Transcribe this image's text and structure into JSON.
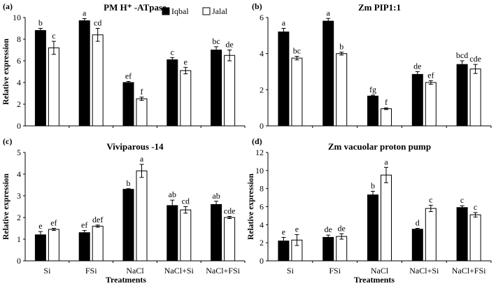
{
  "x_label": "Treatments",
  "chart_data": [
    {
      "type": "bar",
      "panel": "(a)",
      "title": "PM H⁺ -ATpase",
      "ylabel": "Relative expression",
      "ylim": [
        0,
        10
      ],
      "yticks": [
        0,
        2,
        4,
        6,
        8,
        10
      ],
      "categories": [
        "Si",
        "FSi",
        "NaCl",
        "NaCl+Si",
        "NaCl+FSi"
      ],
      "legend": true,
      "series": [
        {
          "name": "Iqbal",
          "color": "#000000",
          "values": [
            8.8,
            9.7,
            4.0,
            6.1,
            7.0
          ],
          "errors": [
            0.2,
            0.2,
            0.1,
            0.2,
            0.3
          ],
          "labels": [
            "b",
            "a",
            "ef",
            "c",
            "bc"
          ]
        },
        {
          "name": "Jalal",
          "color": "#ffffff",
          "values": [
            7.2,
            8.4,
            2.5,
            5.1,
            6.5
          ],
          "errors": [
            0.6,
            0.6,
            0.15,
            0.3,
            0.5
          ],
          "labels": [
            "c",
            "cd",
            "f",
            "e",
            "de"
          ]
        }
      ]
    },
    {
      "type": "bar",
      "panel": "(b)",
      "title": "Zm PIP1:1",
      "ylabel": "",
      "ylim": [
        0,
        6
      ],
      "yticks": [
        0,
        2,
        4,
        6
      ],
      "categories": [
        "Si",
        "FSi",
        "NaCl",
        "NaCl+Si",
        "NaCl+FSi"
      ],
      "legend": false,
      "series": [
        {
          "name": "Iqbal",
          "color": "#000000",
          "values": [
            5.2,
            5.8,
            1.65,
            2.85,
            3.4
          ],
          "errors": [
            0.2,
            0.15,
            0.05,
            0.15,
            0.2
          ],
          "labels": [
            "a",
            "a",
            "fg",
            "de",
            "bcd"
          ]
        },
        {
          "name": "Jalal",
          "color": "#ffffff",
          "values": [
            3.75,
            4.0,
            0.95,
            2.4,
            3.15
          ],
          "errors": [
            0.1,
            0.08,
            0.05,
            0.1,
            0.25
          ],
          "labels": [
            "bc",
            "b",
            "f",
            "ef",
            "cde"
          ]
        }
      ]
    },
    {
      "type": "bar",
      "panel": "(c)",
      "title": "Viviparous -14",
      "ylabel": "Relative expression",
      "ylim": [
        0,
        5
      ],
      "yticks": [
        0,
        1,
        2,
        3,
        4,
        5
      ],
      "categories": [
        "Si",
        "FSi",
        "NaCl",
        "NaCl+Si",
        "NaCl+FSi"
      ],
      "legend": false,
      "series": [
        {
          "name": "Iqbal",
          "color": "#000000",
          "values": [
            1.2,
            1.3,
            3.3,
            2.55,
            2.6
          ],
          "errors": [
            0.15,
            0.1,
            0.03,
            0.25,
            0.15
          ],
          "labels": [
            "e",
            "ef",
            "b",
            "ab",
            "ab"
          ]
        },
        {
          "name": "Jalal",
          "color": "#ffffff",
          "values": [
            1.45,
            1.6,
            4.15,
            2.35,
            2.0
          ],
          "errors": [
            0.05,
            0.05,
            0.3,
            0.15,
            0.05
          ],
          "labels": [
            "ef",
            "def",
            "a",
            "cd",
            "cde"
          ]
        }
      ]
    },
    {
      "type": "bar",
      "panel": "(d)",
      "title": "Zm vacuolar proton pump",
      "ylabel": "Relative expression",
      "ylim": [
        0,
        12
      ],
      "yticks": [
        0,
        2,
        4,
        6,
        8,
        10,
        12
      ],
      "categories": [
        "Si",
        "FSi",
        "NaCl",
        "NaCl+Si",
        "NaCl+FSi"
      ],
      "legend": false,
      "series": [
        {
          "name": "Iqbal",
          "color": "#000000",
          "values": [
            2.2,
            2.6,
            7.3,
            3.5,
            5.9
          ],
          "errors": [
            0.4,
            0.25,
            0.4,
            0.1,
            0.2
          ],
          "labels": [
            "e",
            "de",
            "b",
            "d",
            "c"
          ]
        },
        {
          "name": "Jalal",
          "color": "#ffffff",
          "values": [
            2.3,
            2.7,
            9.5,
            5.8,
            5.1
          ],
          "errors": [
            0.6,
            0.3,
            0.85,
            0.35,
            0.25
          ],
          "labels": [
            "e",
            "de",
            "a",
            "c",
            "c"
          ]
        }
      ]
    }
  ]
}
